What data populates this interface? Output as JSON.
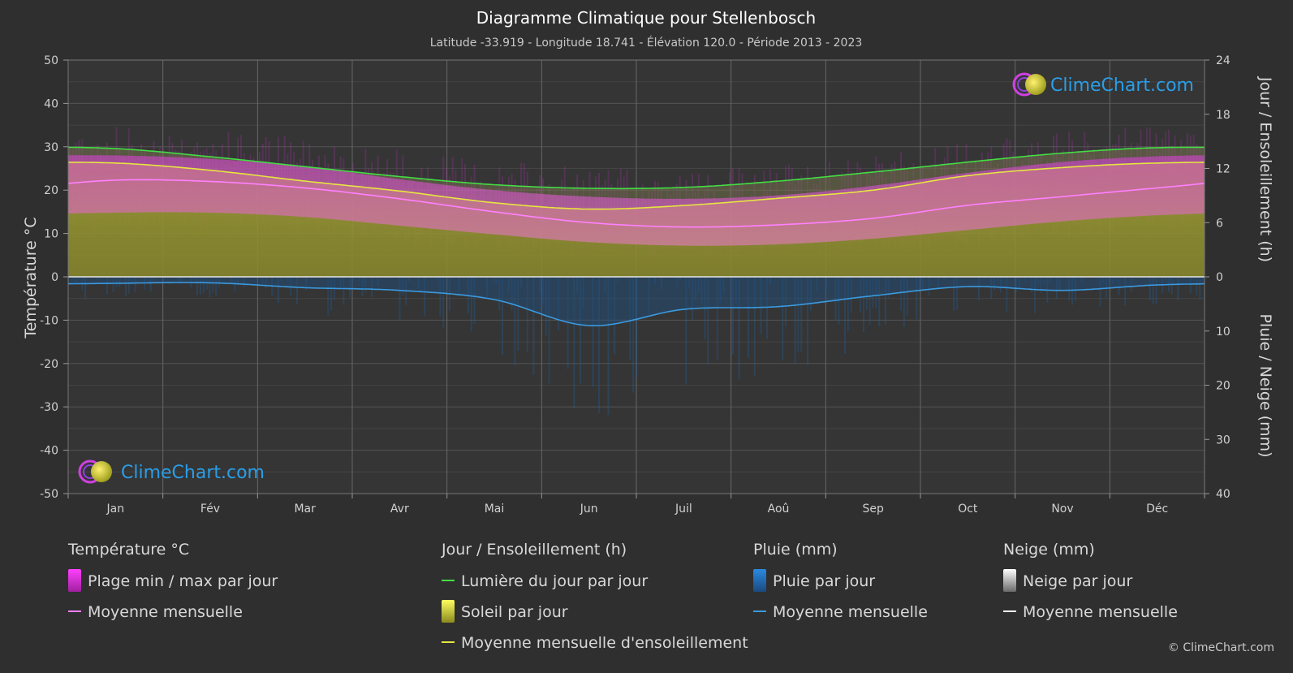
{
  "chart_data": {
    "type": "area",
    "title": "Diagramme Climatique pour Stellenbosch",
    "subtitle": "Latitude -33.919 - Longitude 18.741 - Élévation 120.0 - Période 2013 - 2023",
    "months": [
      "Jan",
      "Fév",
      "Mar",
      "Avr",
      "Mai",
      "Jun",
      "Juil",
      "Aoû",
      "Sep",
      "Oct",
      "Nov",
      "Déc"
    ],
    "left_axis": {
      "label": "Température °C",
      "range": [
        -50,
        50
      ],
      "ticks": [
        50,
        40,
        30,
        20,
        10,
        0,
        -10,
        -20,
        -30,
        -40,
        -50
      ]
    },
    "right_axis_top": {
      "label": "Jour / Ensoleillement (h)",
      "range": [
        0,
        24
      ],
      "ticks": [
        24,
        18,
        12,
        6,
        0
      ]
    },
    "right_axis_bottom": {
      "label": "Pluie / Neige (mm)",
      "range": [
        0,
        40
      ],
      "ticks": [
        0,
        10,
        20,
        30,
        40
      ]
    },
    "series": {
      "temp_max_mean": [
        28.0,
        27.2,
        25.5,
        22.5,
        20.0,
        18.5,
        18.0,
        18.8,
        21.0,
        24.0,
        26.5,
        27.8
      ],
      "temp_min_mean": [
        14.8,
        14.8,
        13.8,
        11.8,
        9.8,
        8.0,
        7.2,
        7.5,
        8.8,
        10.8,
        12.8,
        14.2
      ],
      "temp_monthly_mean": [
        22.3,
        22.0,
        20.5,
        18.0,
        15.0,
        12.5,
        11.5,
        12.0,
        13.5,
        16.5,
        18.5,
        20.5
      ],
      "daylight_hours": [
        14.2,
        13.3,
        12.2,
        11.1,
        10.2,
        9.8,
        9.9,
        10.6,
        11.6,
        12.7,
        13.7,
        14.3
      ],
      "sunshine_hours": [
        12.6,
        11.8,
        10.6,
        9.5,
        8.2,
        7.5,
        7.9,
        8.7,
        9.6,
        11.2,
        12.1,
        12.6
      ],
      "rain_monthly_mean_mm": [
        1.2,
        1.1,
        2.0,
        2.5,
        4.2,
        9.0,
        6.0,
        5.5,
        3.5,
        1.8,
        2.5,
        1.5
      ],
      "snow_monthly_mean_mm": [
        0,
        0,
        0,
        0,
        0,
        0,
        0,
        0,
        0,
        0,
        0,
        0
      ]
    },
    "legend": {
      "groups": [
        {
          "title": "Température °C",
          "items": [
            {
              "kind": "swatch",
              "color": "#e040e0",
              "label": "Plage min / max par jour"
            },
            {
              "kind": "line",
              "color": "#ff80ff",
              "label": "Moyenne mensuelle"
            }
          ]
        },
        {
          "title": "Jour / Ensoleillement (h)",
          "items": [
            {
              "kind": "line",
              "color": "#44dd44",
              "label": "Lumière du jour par jour"
            },
            {
              "kind": "swatch",
              "color": "#d0d040",
              "label": "Soleil par jour"
            },
            {
              "kind": "line",
              "color": "#e6e640",
              "label": "Moyenne mensuelle d'ensoleillement"
            }
          ]
        },
        {
          "title": "Pluie (mm)",
          "items": [
            {
              "kind": "swatch",
              "color": "#2a7fd0",
              "label": "Pluie par jour"
            },
            {
              "kind": "line",
              "color": "#3a9ae0",
              "label": "Moyenne mensuelle"
            }
          ]
        },
        {
          "title": "Neige (mm)",
          "items": [
            {
              "kind": "swatch",
              "color": "#e0e0e0",
              "label": "Neige par jour"
            },
            {
              "kind": "line",
              "color": "#ffffff",
              "label": "Moyenne mensuelle"
            }
          ]
        }
      ]
    },
    "logo_text": "ClimeChart.com",
    "copyright": "© ClimeChart.com",
    "colors": {
      "background": "#2f2f2f",
      "grid": "#5a5a5a",
      "text": "#d0d0d0",
      "logo_blue": "#2a9ee8"
    }
  }
}
